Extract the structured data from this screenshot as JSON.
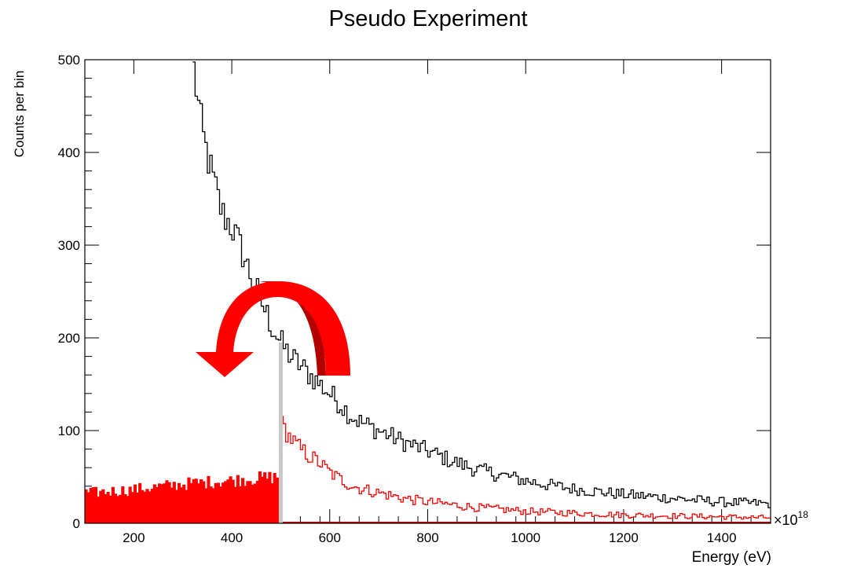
{
  "chart_data": {
    "type": "histogram",
    "title": "Pseudo Experiment",
    "xlabel": "Energy (eV)",
    "ylabel": "Counts per bin",
    "x_multiplier_label": "×10",
    "x_multiplier_exponent": "18",
    "xlim": [
      100,
      1500
    ],
    "ylim": [
      0,
      500
    ],
    "x_ticks": [
      200,
      400,
      600,
      800,
      1000,
      1200,
      1400
    ],
    "y_ticks": [
      0,
      100,
      200,
      300,
      400,
      500
    ],
    "bin_width": 5,
    "series": [
      {
        "style": "step-line",
        "color": "#000000",
        "anchors": [
          [
            320,
            500
          ],
          [
            340,
            420
          ],
          [
            360,
            375
          ],
          [
            380,
            335
          ],
          [
            400,
            320
          ],
          [
            420,
            295
          ],
          [
            440,
            265
          ],
          [
            460,
            240
          ],
          [
            480,
            215
          ],
          [
            500,
            195
          ],
          [
            520,
            180
          ],
          [
            540,
            170
          ],
          [
            560,
            160
          ],
          [
            580,
            150
          ],
          [
            600,
            140
          ],
          [
            620,
            130
          ],
          [
            640,
            118
          ],
          [
            660,
            110
          ],
          [
            700,
            100
          ],
          [
            750,
            88
          ],
          [
            800,
            78
          ],
          [
            850,
            67
          ],
          [
            900,
            58
          ],
          [
            950,
            52
          ],
          [
            1000,
            46
          ],
          [
            1050,
            41
          ],
          [
            1100,
            37
          ],
          [
            1150,
            34
          ],
          [
            1200,
            31
          ],
          [
            1250,
            29
          ],
          [
            1300,
            27
          ],
          [
            1350,
            25
          ],
          [
            1400,
            23
          ],
          [
            1450,
            22
          ],
          [
            1500,
            21
          ]
        ]
      },
      {
        "style": "step-line",
        "color": "#ff0000",
        "anchors": [
          [
            500,
            108
          ],
          [
            520,
            92
          ],
          [
            540,
            80
          ],
          [
            560,
            72
          ],
          [
            580,
            65
          ],
          [
            600,
            55
          ],
          [
            620,
            48
          ],
          [
            640,
            42
          ],
          [
            660,
            38
          ],
          [
            700,
            33
          ],
          [
            750,
            27
          ],
          [
            800,
            23
          ],
          [
            850,
            20
          ],
          [
            900,
            17
          ],
          [
            950,
            15
          ],
          [
            1000,
            13
          ],
          [
            1100,
            11
          ],
          [
            1200,
            9
          ],
          [
            1300,
            8
          ],
          [
            1400,
            7
          ],
          [
            1500,
            6
          ]
        ]
      },
      {
        "style": "filled",
        "color": "#ff0000",
        "anchors": [
          [
            100,
            32
          ],
          [
            200,
            36
          ],
          [
            300,
            42
          ],
          [
            400,
            46
          ],
          [
            500,
            50
          ]
        ]
      }
    ],
    "cut_line": {
      "x": 500,
      "y": 195,
      "color": "#c8c8c8"
    },
    "arrow_color": "#ff0000",
    "arrow_shadow_color": "#b30000"
  }
}
